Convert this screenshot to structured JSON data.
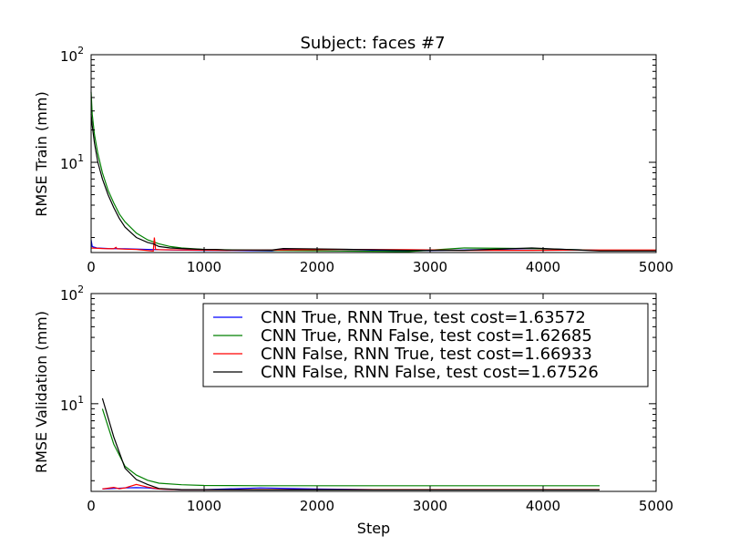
{
  "figure": {
    "title": "Subject: faces #7",
    "xlabel": "Step"
  },
  "chart_data": [
    {
      "type": "line",
      "title": "Subject: faces #7",
      "xlabel": "",
      "ylabel": "RMSE Train (mm)",
      "yscale": "log",
      "xlim": [
        0,
        5000
      ],
      "ylim": [
        1.45,
        100
      ],
      "x_ticks": [
        "0",
        "1000",
        "2000",
        "3000",
        "4000",
        "5000"
      ],
      "y_ticks": [
        {
          "base": "10",
          "exp": "1"
        },
        {
          "base": "10",
          "exp": "2"
        }
      ],
      "legend": "none",
      "series": [
        {
          "color": "#0000ff",
          "x": [
            0,
            10,
            50,
            150,
            300,
            500,
            700,
            1000,
            1200,
            1600,
            1700,
            2200,
            2800,
            3300,
            3900,
            4500,
            5000
          ],
          "y": [
            1.9,
            1.65,
            1.6,
            1.58,
            1.57,
            1.55,
            1.53,
            1.52,
            1.52,
            1.5,
            1.55,
            1.55,
            1.5,
            1.53,
            1.58,
            1.52,
            1.52
          ]
        },
        {
          "color": "#008000",
          "x": [
            0,
            10,
            30,
            60,
            100,
            150,
            200,
            250,
            300,
            400,
            500,
            600,
            700,
            800,
            1000,
            1500,
            2200,
            2800,
            3300,
            3900,
            4500,
            5000
          ],
          "y": [
            45,
            28,
            18,
            12,
            8,
            5.5,
            4.2,
            3.3,
            2.8,
            2.2,
            1.9,
            1.75,
            1.65,
            1.6,
            1.55,
            1.52,
            1.5,
            1.48,
            1.6,
            1.58,
            1.52,
            1.52
          ]
        },
        {
          "color": "#ff0000",
          "x": [
            0,
            100,
            200,
            220,
            230,
            300,
            400,
            550,
            560,
            570,
            600,
            800,
            1200,
            1700,
            2200,
            2800,
            3300,
            3900,
            4500,
            5000
          ],
          "y": [
            1.6,
            1.58,
            1.57,
            1.62,
            1.57,
            1.56,
            1.55,
            1.5,
            2.0,
            1.55,
            1.54,
            1.53,
            1.52,
            1.53,
            1.55,
            1.54,
            1.52,
            1.52,
            1.53,
            1.53
          ]
        },
        {
          "color": "#000000",
          "x": [
            0,
            10,
            30,
            60,
            100,
            150,
            200,
            250,
            300,
            400,
            500,
            550,
            600,
            700,
            800,
            1000,
            1100,
            1200,
            1600,
            1700,
            2200,
            2800,
            3300,
            3900,
            4500,
            5000
          ],
          "y": [
            28,
            22,
            15,
            10,
            7,
            5,
            3.8,
            3.0,
            2.5,
            2.0,
            1.8,
            1.75,
            1.65,
            1.6,
            1.58,
            1.55,
            1.55,
            1.53,
            1.53,
            1.58,
            1.56,
            1.52,
            1.52,
            1.6,
            1.5,
            1.5
          ]
        }
      ]
    },
    {
      "type": "line",
      "title": "",
      "xlabel": "Step",
      "ylabel": "RMSE Validation (mm)",
      "yscale": "log",
      "xlim": [
        0,
        5000
      ],
      "ylim": [
        1.6,
        100
      ],
      "x_ticks": [
        "0",
        "1000",
        "2000",
        "3000",
        "4000",
        "5000"
      ],
      "y_ticks": [
        {
          "base": "10",
          "exp": "1"
        },
        {
          "base": "10",
          "exp": "2"
        }
      ],
      "legend": "top-right",
      "series": [
        {
          "name": "CNN True, RNN True, test cost=1.63572",
          "color": "#0000ff",
          "x": [
            100,
            200,
            300,
            400,
            500,
            600,
            800,
            1000,
            1500,
            2000,
            2500,
            3000,
            3500,
            4000,
            4500
          ],
          "y": [
            1.68,
            1.7,
            1.72,
            1.73,
            1.72,
            1.68,
            1.66,
            1.66,
            1.72,
            1.68,
            1.66,
            1.66,
            1.66,
            1.66,
            1.66
          ]
        },
        {
          "name": "CNN True, RNN False, test cost=1.62685",
          "color": "#008000",
          "x": [
            100,
            200,
            300,
            400,
            500,
            600,
            800,
            1000,
            1500,
            2000,
            2500,
            3000,
            3500,
            4000,
            4500
          ],
          "y": [
            9,
            4.3,
            2.7,
            2.25,
            2.02,
            1.9,
            1.84,
            1.81,
            1.8,
            1.8,
            1.8,
            1.8,
            1.8,
            1.8,
            1.8
          ]
        },
        {
          "name": "CNN False, RNN True, test cost=1.66933",
          "color": "#ff0000",
          "x": [
            100,
            200,
            250,
            300,
            400,
            500,
            600,
            800,
            1000,
            1500,
            2000,
            2500,
            3000,
            3500,
            4000,
            4500
          ],
          "y": [
            1.68,
            1.74,
            1.69,
            1.72,
            1.85,
            1.75,
            1.68,
            1.66,
            1.66,
            1.66,
            1.66,
            1.66,
            1.66,
            1.66,
            1.66,
            1.66
          ]
        },
        {
          "name": "CNN False, RNN False, test cost=1.67526",
          "color": "#000000",
          "x": [
            100,
            200,
            300,
            400,
            500,
            600,
            800,
            1000,
            1500,
            2000,
            2500,
            3000,
            3500,
            4000,
            4500
          ],
          "y": [
            11.2,
            5.0,
            2.6,
            2.05,
            1.85,
            1.7,
            1.66,
            1.66,
            1.65,
            1.65,
            1.65,
            1.65,
            1.65,
            1.65,
            1.65
          ]
        }
      ]
    }
  ]
}
